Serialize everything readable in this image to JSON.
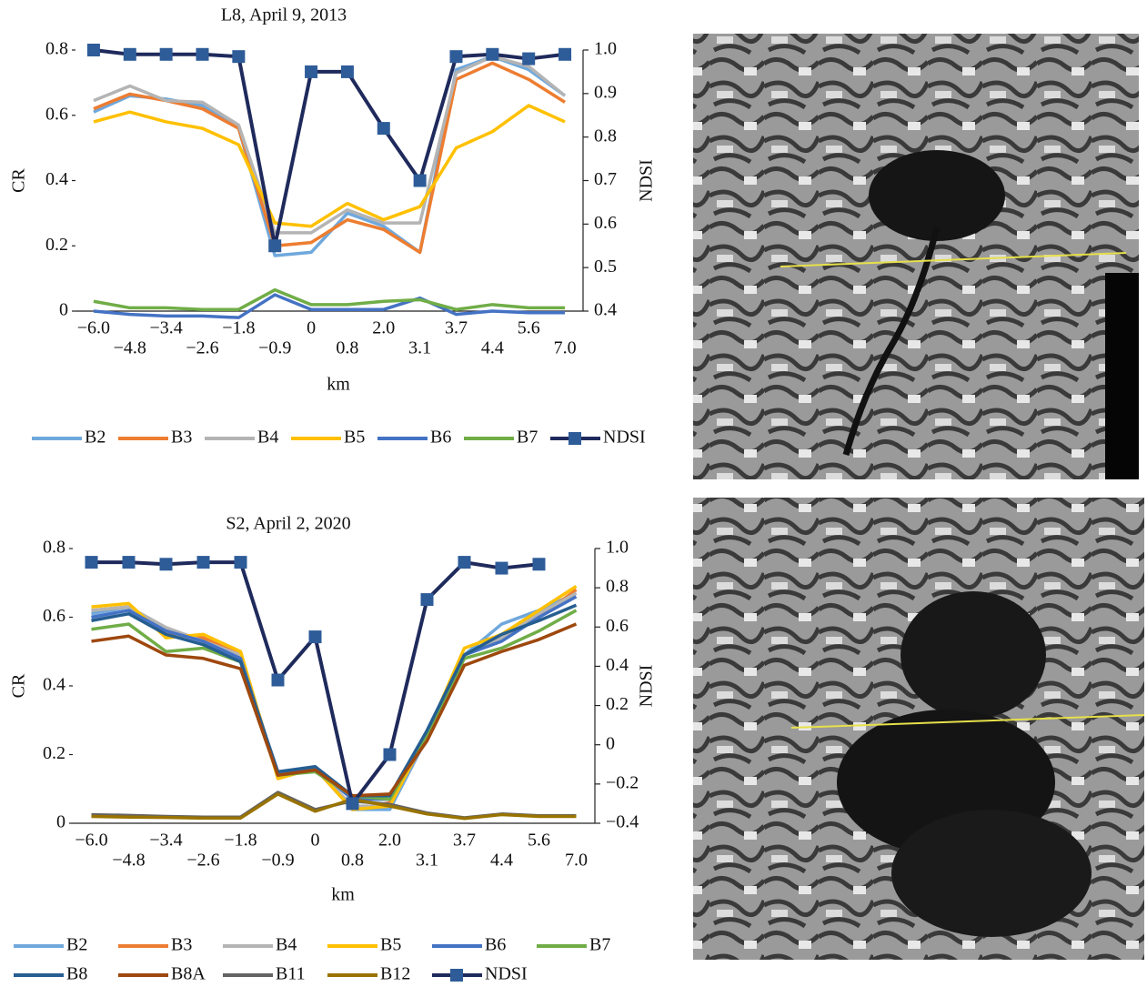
{
  "chart_data": [
    {
      "type": "line",
      "title": "L8, April 9, 2013",
      "x_label": "km",
      "y_label": "CR",
      "y2_label": "NDSI",
      "categories": [
        "−6.0",
        "−4.8",
        "−3.4",
        "−2.6",
        "−1.8",
        "−0.9",
        "0",
        "0.8",
        "2.0",
        "3.1",
        "3.7",
        "4.4",
        "5.6",
        "7.0"
      ],
      "ylim": [
        0,
        0.8
      ],
      "yticks": [
        0,
        0.2,
        0.4,
        0.6,
        0.8
      ],
      "y2lim": [
        0.4,
        1.0
      ],
      "y2ticks": [
        0.4,
        0.5,
        0.6,
        0.7,
        0.8,
        0.9,
        {
          "value": 1.0,
          "label": "1.0"
        }
      ],
      "series": [
        {
          "name": "B2",
          "color": "#6fa8dc",
          "values": [
            0.61,
            0.66,
            0.65,
            0.63,
            0.56,
            0.17,
            0.18,
            0.3,
            0.26,
            0.18,
            0.74,
            0.78,
            0.74,
            0.66
          ]
        },
        {
          "name": "B3",
          "color": "#ed7d31",
          "values": [
            0.62,
            0.665,
            0.645,
            0.62,
            0.56,
            0.2,
            0.21,
            0.28,
            0.25,
            0.18,
            0.71,
            0.76,
            0.71,
            0.64
          ]
        },
        {
          "name": "B4",
          "color": "#b4b4b4",
          "values": [
            0.645,
            0.69,
            0.645,
            0.64,
            0.57,
            0.24,
            0.24,
            0.31,
            0.27,
            0.27,
            0.73,
            0.78,
            0.75,
            0.66
          ]
        },
        {
          "name": "B5",
          "color": "#ffc000",
          "values": [
            0.58,
            0.61,
            0.58,
            0.56,
            0.51,
            0.27,
            0.26,
            0.33,
            0.28,
            0.32,
            0.5,
            0.55,
            0.63,
            0.58
          ]
        },
        {
          "name": "B6",
          "color": "#4472c4",
          "values": [
            0.0,
            -0.01,
            -0.015,
            -0.015,
            -0.02,
            0.05,
            0.005,
            0.005,
            0.005,
            0.04,
            -0.01,
            0.0,
            -0.005,
            -0.005
          ]
        },
        {
          "name": "B7",
          "color": "#70ad47",
          "values": [
            0.03,
            0.01,
            0.01,
            0.005,
            0.005,
            0.065,
            0.02,
            0.02,
            0.03,
            0.035,
            0.005,
            0.02,
            0.01,
            0.01
          ]
        },
        {
          "name": "NDSI",
          "color": "#1f2a5c",
          "marker_color": "#2e5c99",
          "axis": "y2",
          "values": [
            1.0,
            0.99,
            0.99,
            0.99,
            0.985,
            0.55,
            0.95,
            0.95,
            0.82,
            0.7,
            0.985,
            0.99,
            0.98,
            0.99
          ]
        }
      ]
    },
    {
      "type": "line",
      "title": "S2, April 2, 2020",
      "x_label": "km",
      "y_label": "CR",
      "y2_label": "NDSI",
      "categories": [
        "−6.0",
        "−4.8",
        "−3.4",
        "−2.6",
        "−1.8",
        "−0.9",
        "0",
        "0.8",
        "2.0",
        "3.1",
        "3.7",
        "4.4",
        "5.6",
        "7.0"
      ],
      "ylim": [
        0,
        0.8
      ],
      "yticks": [
        0,
        0.2,
        0.4,
        0.6,
        0.8
      ],
      "y2lim": [
        -0.4,
        1.0
      ],
      "y2ticks": [
        {
          "value": -0.4,
          "label": "−0.4"
        },
        {
          "value": -0.2,
          "label": "−0.2"
        },
        0,
        0.2,
        0.4,
        0.6,
        0.8,
        {
          "value": 1.0,
          "label": "1.0"
        }
      ],
      "series": [
        {
          "name": "B2",
          "color": "#6fa8dc",
          "values": [
            0.61,
            0.63,
            0.56,
            0.53,
            0.48,
            0.14,
            0.16,
            0.04,
            0.04,
            0.25,
            0.49,
            0.58,
            0.62,
            0.67
          ]
        },
        {
          "name": "B3",
          "color": "#ed7d31",
          "values": [
            0.62,
            0.63,
            0.55,
            0.54,
            0.49,
            0.14,
            0.16,
            0.04,
            0.06,
            0.25,
            0.49,
            0.54,
            0.6,
            0.68
          ]
        },
        {
          "name": "B4",
          "color": "#b4b4b4",
          "values": [
            0.62,
            0.63,
            0.57,
            0.53,
            0.49,
            0.14,
            0.16,
            0.05,
            0.05,
            0.26,
            0.49,
            0.54,
            0.61,
            0.67
          ]
        },
        {
          "name": "B5",
          "color": "#ffc000",
          "values": [
            0.63,
            0.64,
            0.54,
            0.55,
            0.5,
            0.13,
            0.16,
            0.04,
            0.05,
            0.26,
            0.51,
            0.55,
            0.62,
            0.69
          ]
        },
        {
          "name": "B6",
          "color": "#4472c4",
          "values": [
            0.6,
            0.62,
            0.56,
            0.53,
            0.48,
            0.14,
            0.16,
            0.07,
            0.07,
            0.27,
            0.49,
            0.53,
            0.6,
            0.66
          ]
        },
        {
          "name": "B7",
          "color": "#70ad47",
          "values": [
            0.565,
            0.58,
            0.5,
            0.51,
            0.47,
            0.14,
            0.15,
            0.08,
            0.07,
            0.26,
            0.48,
            0.51,
            0.56,
            0.62
          ]
        },
        {
          "name": "B8",
          "color": "#255e91",
          "values": [
            0.59,
            0.61,
            0.55,
            0.52,
            0.47,
            0.15,
            0.165,
            0.08,
            0.08,
            0.27,
            0.49,
            0.55,
            0.59,
            0.635
          ]
        },
        {
          "name": "B8A",
          "color": "#9e480e",
          "values": [
            0.53,
            0.545,
            0.49,
            0.48,
            0.45,
            0.14,
            0.155,
            0.08,
            0.085,
            0.24,
            0.46,
            0.5,
            0.535,
            0.58
          ]
        },
        {
          "name": "B11",
          "color": "#636363",
          "values": [
            0.025,
            0.023,
            0.02,
            0.018,
            0.018,
            0.09,
            0.04,
            0.065,
            0.055,
            0.03,
            0.016,
            0.027,
            0.022,
            0.022
          ]
        },
        {
          "name": "B12",
          "color": "#997300",
          "values": [
            0.02,
            0.018,
            0.017,
            0.015,
            0.015,
            0.085,
            0.035,
            0.07,
            0.05,
            0.027,
            0.014,
            0.025,
            0.02,
            0.02
          ]
        },
        {
          "name": "NDSI",
          "color": "#1f2a5c",
          "marker_color": "#2e5c99",
          "axis": "y2",
          "values": [
            0.93,
            0.93,
            0.92,
            0.93,
            0.93,
            0.33,
            0.55,
            -0.3,
            -0.05,
            0.74,
            0.93,
            0.9,
            0.92,
            null
          ]
        }
      ]
    }
  ]
}
